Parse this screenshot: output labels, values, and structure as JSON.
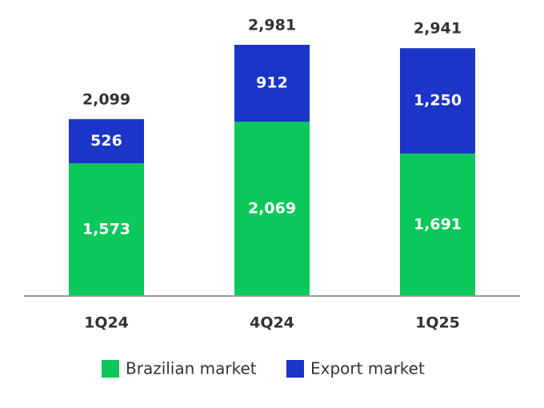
{
  "chart_data": {
    "type": "stacked-bar",
    "categories": [
      "1Q24",
      "4Q24",
      "1Q25"
    ],
    "series": [
      {
        "name": "Brazilian market",
        "color": "#0cc75a",
        "values": [
          1573,
          2069,
          1691
        ],
        "value_labels": [
          "1,573",
          "2,069",
          "1,691"
        ]
      },
      {
        "name": "Export market",
        "color": "#1b35c6",
        "values": [
          526,
          912,
          1250
        ],
        "value_labels": [
          "526",
          "912",
          "1,250"
        ]
      }
    ],
    "totals": [
      2099,
      2981,
      2941
    ],
    "total_labels": [
      "2,099",
      "2,981",
      "2,941"
    ]
  }
}
